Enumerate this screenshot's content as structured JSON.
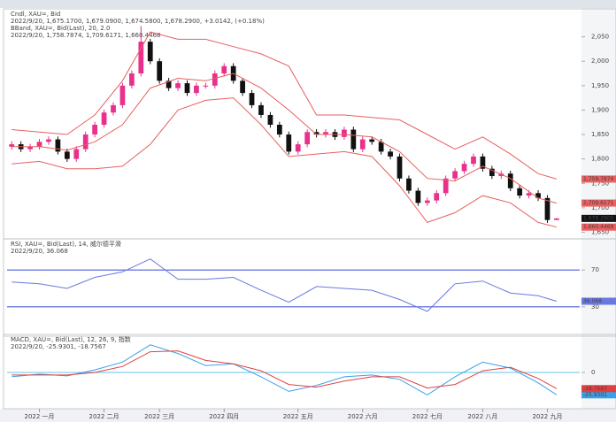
{
  "chart_data": [
    {
      "type": "candlestick",
      "header": [
        {
          "text": "Cndl, XAU=, Bid",
          "color": "#222222"
        },
        {
          "text": "2022/9/20, 1,675.1700, 1,679.0900, 1,674.5800, 1,678.2900, +3.0142, (+0.18%)",
          "color": "#222222"
        },
        {
          "text": "BBand, XAU=, Bid(Last), 20, 2.0",
          "color": "#e03030"
        },
        {
          "text": "2022/9/20, 1,758.7874, 1,709.6171, 1,660.4468",
          "color": "#e03030"
        }
      ],
      "xlim": [
        -0.5,
        61.5
      ],
      "ylim": [
        1640,
        2100
      ],
      "yticks": [
        {
          "value": 1650,
          "label": "1,650"
        },
        {
          "value": 1700,
          "label": "1,700"
        },
        {
          "value": 1750,
          "label": "1,750"
        },
        {
          "value": 1800,
          "label": "1,800"
        },
        {
          "value": 1850,
          "label": "1,850"
        },
        {
          "value": 1900,
          "label": "1,900"
        },
        {
          "value": 1950,
          "label": "1,950"
        },
        {
          "value": 2000,
          "label": "2,000"
        },
        {
          "value": 2050,
          "label": "2,050"
        }
      ],
      "up_color": "#e8308c",
      "down_color": "#111111",
      "open": [
        1825,
        1830,
        1820,
        1825,
        1835,
        1840,
        1815,
        1800,
        1820,
        1850,
        1870,
        1895,
        1910,
        1950,
        1975,
        2040,
        2000,
        1960,
        1945,
        1955,
        1935,
        1950,
        1950,
        1975,
        1990,
        1960,
        1935,
        1910,
        1890,
        1870,
        1850,
        1815,
        1830,
        1855,
        1850,
        1855,
        1845,
        1860,
        1820,
        1840,
        1835,
        1815,
        1805,
        1760,
        1735,
        1710,
        1715,
        1730,
        1760,
        1775,
        1790,
        1805,
        1780,
        1765,
        1770,
        1740,
        1725,
        1730,
        1720,
        1675.17
      ],
      "high": [
        1836,
        1836,
        1831,
        1841,
        1846,
        1846,
        1821,
        1826,
        1856,
        1876,
        1901,
        1916,
        1956,
        1981,
        2072,
        2046,
        2006,
        1966,
        1961,
        1961,
        1956,
        1956,
        1981,
        1996,
        1996,
        1966,
        1941,
        1916,
        1896,
        1876,
        1856,
        1836,
        1861,
        1861,
        1861,
        1861,
        1866,
        1866,
        1846,
        1846,
        1841,
        1821,
        1811,
        1766,
        1741,
        1721,
        1736,
        1766,
        1781,
        1796,
        1811,
        1811,
        1786,
        1776,
        1776,
        1746,
        1736,
        1736,
        1726,
        1679.09
      ],
      "low": [
        1819,
        1814,
        1814,
        1819,
        1829,
        1809,
        1794,
        1794,
        1814,
        1844,
        1864,
        1889,
        1904,
        1944,
        1969,
        1994,
        1954,
        1939,
        1939,
        1929,
        1929,
        1944,
        1944,
        1969,
        1954,
        1929,
        1904,
        1884,
        1864,
        1844,
        1809,
        1809,
        1824,
        1844,
        1844,
        1839,
        1839,
        1814,
        1814,
        1829,
        1809,
        1799,
        1754,
        1729,
        1704,
        1704,
        1709,
        1724,
        1754,
        1769,
        1784,
        1774,
        1759,
        1759,
        1734,
        1719,
        1719,
        1714,
        1669,
        1674.58
      ],
      "close": [
        1830,
        1820,
        1825,
        1835,
        1840,
        1815,
        1800,
        1820,
        1850,
        1870,
        1895,
        1910,
        1950,
        1975,
        2040,
        2000,
        1960,
        1945,
        1955,
        1935,
        1950,
        1950,
        1975,
        1990,
        1960,
        1935,
        1910,
        1890,
        1870,
        1850,
        1815,
        1830,
        1855,
        1850,
        1855,
        1845,
        1860,
        1820,
        1840,
        1835,
        1815,
        1805,
        1760,
        1735,
        1710,
        1715,
        1730,
        1760,
        1775,
        1790,
        1805,
        1780,
        1765,
        1770,
        1740,
        1725,
        1730,
        1720,
        1675,
        1678.29
      ],
      "close_value_labels": [
        null,
        null,
        null,
        null,
        null,
        null,
        null,
        null,
        null,
        null,
        null,
        null,
        null,
        null,
        null,
        null,
        null,
        null,
        null,
        null,
        null,
        null,
        null,
        null,
        null,
        null,
        null,
        null,
        null,
        null,
        null,
        null,
        null,
        null,
        null,
        null,
        null,
        null,
        null,
        null,
        null,
        null,
        null,
        null,
        null,
        null,
        null,
        null,
        null,
        null,
        null,
        null,
        null,
        null,
        null,
        null,
        null,
        null,
        null,
        "1,678.2900"
      ],
      "series": [
        {
          "color": "#e86060",
          "x": [
            0,
            3,
            6,
            9,
            12,
            15,
            18,
            21,
            24,
            27,
            30,
            33,
            36,
            39,
            42,
            45,
            48,
            51,
            54,
            57,
            59
          ],
          "values": [
            1860,
            1855,
            1850,
            1890,
            1960,
            2060,
            2045,
            2045,
            2030,
            2015,
            1990,
            1890,
            1890,
            1885,
            1880,
            1850,
            1820,
            1845,
            1810,
            1770,
            1758.7874
          ],
          "value_labels": [
            null,
            null,
            null,
            null,
            null,
            null,
            null,
            null,
            null,
            null,
            null,
            null,
            null,
            null,
            null,
            null,
            null,
            null,
            null,
            null,
            "1,758.7874"
          ]
        },
        {
          "color": "#e86060",
          "x": [
            0,
            3,
            6,
            9,
            12,
            15,
            18,
            21,
            24,
            27,
            30,
            33,
            36,
            39,
            42,
            45,
            48,
            51,
            54,
            57,
            59
          ],
          "values": [
            1825,
            1825,
            1818,
            1835,
            1870,
            1945,
            1965,
            1960,
            1975,
            1945,
            1900,
            1850,
            1850,
            1845,
            1815,
            1760,
            1755,
            1785,
            1760,
            1720,
            1709.6171
          ],
          "value_labels": [
            null,
            null,
            null,
            null,
            null,
            null,
            null,
            null,
            null,
            null,
            null,
            null,
            null,
            null,
            null,
            null,
            null,
            null,
            null,
            null,
            "1,709.6171"
          ]
        },
        {
          "color": "#e86060",
          "x": [
            0,
            3,
            6,
            9,
            12,
            15,
            18,
            21,
            24,
            27,
            30,
            33,
            36,
            39,
            42,
            45,
            48,
            51,
            54,
            57,
            59
          ],
          "values": [
            1790,
            1795,
            1780,
            1780,
            1785,
            1830,
            1900,
            1920,
            1925,
            1870,
            1805,
            1810,
            1815,
            1805,
            1745,
            1670,
            1690,
            1725,
            1710,
            1670,
            1660.4468
          ],
          "value_labels": [
            null,
            null,
            null,
            null,
            null,
            null,
            null,
            null,
            null,
            null,
            null,
            null,
            null,
            null,
            null,
            null,
            null,
            null,
            null,
            null,
            "1,660.4468"
          ]
        }
      ]
    },
    {
      "type": "line",
      "header": [
        {
          "text": "RSI, XAU=, Bid(Last), 14, 威尔德平滑",
          "color": "#3355cc"
        },
        {
          "text": "2022/9/20, 36.068",
          "color": "#3355cc"
        }
      ],
      "xlim": [
        -0.5,
        61.5
      ],
      "ylim": [
        0,
        100
      ],
      "yticks": [
        30,
        70
      ],
      "tick_line_color": "#4a5ed8",
      "series": [
        {
          "color": "#6a78e0",
          "x": [
            0,
            3,
            6,
            9,
            12,
            15,
            18,
            21,
            24,
            27,
            30,
            33,
            36,
            39,
            42,
            45,
            48,
            51,
            54,
            57,
            59
          ],
          "values": [
            57,
            55,
            50,
            62,
            68,
            82,
            60,
            60,
            62,
            48,
            35,
            52,
            50,
            48,
            38,
            25,
            55,
            58,
            45,
            42,
            36.068
          ],
          "value_labels": [
            null,
            null,
            null,
            null,
            null,
            null,
            null,
            null,
            null,
            null,
            null,
            null,
            null,
            null,
            null,
            null,
            null,
            null,
            null,
            null,
            "36.068"
          ]
        }
      ]
    },
    {
      "type": "line",
      "header": [
        {
          "text": "MACD, XAU=, Bid(Last), 12, 26, 9, 指数",
          "color": "#3355cc"
        },
        {
          "text": "2022/9/20, -25.9301, -18.7567",
          "color": "#3355cc"
        }
      ],
      "xlim": [
        -0.5,
        61.5
      ],
      "ylim": [
        -40,
        40
      ],
      "yticks": [
        0
      ],
      "tick_line_color": "#7fd0f0",
      "xticks": [
        {
          "value": 3,
          "label": "2022 一月"
        },
        {
          "value": 10,
          "label": "2022 二月"
        },
        {
          "value": 16,
          "label": "2022 三月"
        },
        {
          "value": 23,
          "label": "2022 四月"
        },
        {
          "value": 31,
          "label": "2022 五月"
        },
        {
          "value": 38,
          "label": "2022 六月"
        },
        {
          "value": 45,
          "label": "2022 七月"
        },
        {
          "value": 51,
          "label": "2022 八月"
        },
        {
          "value": 58,
          "label": "2022 九月"
        }
      ],
      "series": [
        {
          "color": "#3aa0e8",
          "x": [
            0,
            3,
            6,
            9,
            12,
            15,
            18,
            21,
            24,
            27,
            30,
            33,
            36,
            39,
            42,
            45,
            48,
            51,
            54,
            57,
            59
          ],
          "values": [
            -5,
            -2,
            -4,
            3,
            12,
            32,
            22,
            8,
            10,
            -5,
            -22,
            -15,
            -5,
            -3,
            -8,
            -26,
            -5,
            12,
            5,
            -12,
            -25.9301
          ],
          "value_labels": [
            null,
            null,
            null,
            null,
            null,
            null,
            null,
            null,
            null,
            null,
            null,
            null,
            null,
            null,
            null,
            null,
            null,
            null,
            null,
            null,
            "-25.9301"
          ]
        },
        {
          "color": "#e04040",
          "x": [
            0,
            3,
            6,
            9,
            12,
            15,
            18,
            21,
            24,
            27,
            30,
            33,
            36,
            39,
            42,
            45,
            48,
            51,
            54,
            57,
            59
          ],
          "values": [
            -3,
            -3,
            -3,
            0,
            7,
            24,
            25,
            14,
            10,
            2,
            -14,
            -17,
            -10,
            -5,
            -5,
            -18,
            -14,
            2,
            6,
            -7,
            -18.7567
          ],
          "value_labels": [
            null,
            null,
            null,
            null,
            null,
            null,
            null,
            null,
            null,
            null,
            null,
            null,
            null,
            null,
            null,
            null,
            null,
            null,
            null,
            null,
            "-18.7567"
          ]
        }
      ]
    }
  ]
}
